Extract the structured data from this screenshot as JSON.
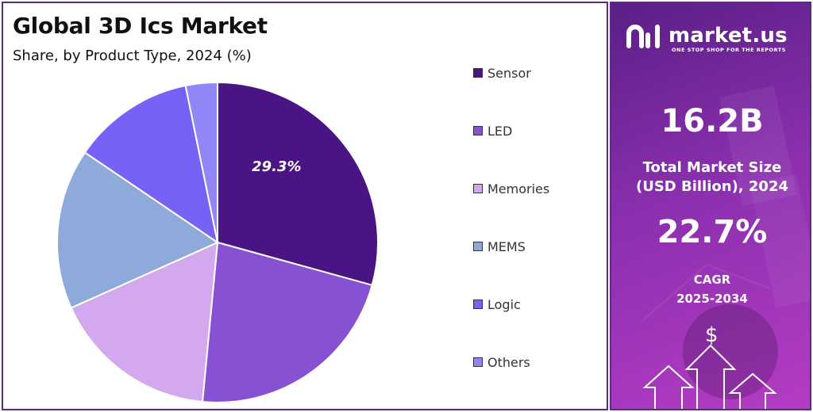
{
  "title": "Global 3D Ics Market",
  "subtitle": "Share, by Product Type, 2024 (%)",
  "chart_data": {
    "type": "pie",
    "categories": [
      "Sensor",
      "LED",
      "Memories",
      "MEMS",
      "Logic",
      "Others"
    ],
    "values": [
      29.3,
      22.2,
      16.8,
      16.2,
      12.3,
      3.2
    ],
    "colors": [
      "#4a1484",
      "#8652d1",
      "#d4a8ee",
      "#8eaadb",
      "#7662f6",
      "#9086f8"
    ],
    "data_labels": [
      "29.3%",
      "",
      "",
      "",
      "",
      ""
    ],
    "legend_position": "right"
  },
  "brand": {
    "name": "market.us",
    "tagline": "ONE STOP SHOP FOR THE REPORTS"
  },
  "stats": {
    "market_size_value": "16.2B",
    "market_size_label_1": "Total Market Size",
    "market_size_label_2": "(USD Billion), 2024",
    "cagr_value": "22.7%",
    "cagr_label_1": "CAGR",
    "cagr_label_2": "2025-2034"
  },
  "icons": {
    "currency": "$"
  }
}
